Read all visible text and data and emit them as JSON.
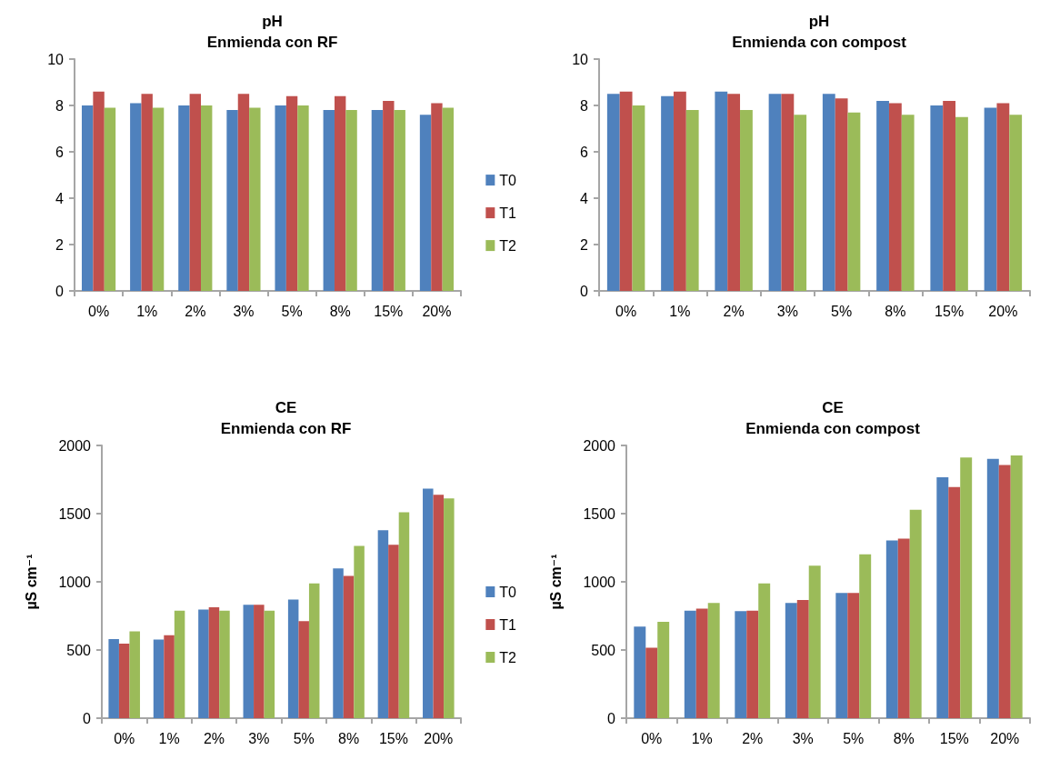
{
  "chart_data": [
    {
      "type": "bar",
      "title": "pH",
      "subtitle": "Enmienda con RF",
      "categories": [
        "0%",
        "1%",
        "2%",
        "3%",
        "5%",
        "8%",
        "15%",
        "20%"
      ],
      "series": [
        {
          "name": "T0",
          "color": "#4f81bd",
          "values": [
            8.0,
            8.1,
            8.0,
            7.8,
            8.0,
            7.8,
            7.8,
            7.6
          ]
        },
        {
          "name": "T1",
          "color": "#c0504d",
          "values": [
            8.6,
            8.5,
            8.5,
            8.5,
            8.4,
            8.4,
            8.2,
            8.1
          ]
        },
        {
          "name": "T2",
          "color": "#9bbb59",
          "values": [
            7.9,
            7.9,
            8.0,
            7.9,
            8.0,
            7.8,
            7.8,
            7.9
          ]
        }
      ],
      "ylim": [
        0,
        10
      ],
      "yticks": [
        0,
        2,
        4,
        6,
        8,
        10
      ],
      "grid": false,
      "legend": "right"
    },
    {
      "type": "bar",
      "title": "pH",
      "subtitle": "Enmienda con compost",
      "categories": [
        "0%",
        "1%",
        "2%",
        "3%",
        "5%",
        "8%",
        "15%",
        "20%"
      ],
      "series": [
        {
          "color": "#4f81bd",
          "values": [
            8.5,
            8.4,
            8.6,
            8.5,
            8.5,
            8.2,
            8.0,
            7.9
          ]
        },
        {
          "color": "#c0504d",
          "values": [
            8.6,
            8.6,
            8.5,
            8.5,
            8.3,
            8.1,
            8.2,
            8.1
          ]
        },
        {
          "color": "#9bbb59",
          "values": [
            8.0,
            7.8,
            7.8,
            7.6,
            7.7,
            7.6,
            7.5,
            7.6
          ]
        }
      ],
      "ylim": [
        0,
        10
      ],
      "yticks": [
        0,
        2,
        4,
        6,
        8,
        10
      ],
      "grid": false,
      "legend": false
    },
    {
      "type": "bar",
      "title": "CE",
      "subtitle": "Enmienda con RF",
      "ylabel": "µS cm⁻¹",
      "categories": [
        "0%",
        "1%",
        "2%",
        "3%",
        "5%",
        "8%",
        "15%",
        "20%"
      ],
      "series": [
        {
          "name": "T0",
          "color": "#4f81bd",
          "values": [
            580,
            576,
            797,
            832,
            870,
            1099,
            1378,
            1684
          ]
        },
        {
          "name": "T1",
          "color": "#c0504d",
          "values": [
            547,
            609,
            814,
            832,
            711,
            1044,
            1271,
            1639
          ]
        },
        {
          "name": "T2",
          "color": "#9bbb59",
          "values": [
            636,
            788,
            788,
            788,
            988,
            1264,
            1510,
            1612
          ]
        }
      ],
      "ylim": [
        0,
        2000
      ],
      "yticks": [
        0,
        500,
        1000,
        1500,
        2000
      ],
      "grid": false,
      "legend": "right"
    },
    {
      "type": "bar",
      "title": "CE",
      "subtitle": "Enmienda con compost",
      "ylabel": "µS cm⁻¹",
      "categories": [
        "0%",
        "1%",
        "2%",
        "3%",
        "5%",
        "8%",
        "15%",
        "20%"
      ],
      "series": [
        {
          "color": "#4f81bd",
          "values": [
            671,
            789,
            785,
            845,
            919,
            1303,
            1766,
            1901
          ]
        },
        {
          "color": "#c0504d",
          "values": [
            516,
            803,
            789,
            866,
            919,
            1317,
            1695,
            1857
          ]
        },
        {
          "color": "#9bbb59",
          "values": [
            706,
            845,
            988,
            1118,
            1201,
            1528,
            1912,
            1926
          ]
        }
      ],
      "ylim": [
        0,
        2000
      ],
      "yticks": [
        0,
        500,
        1000,
        1500,
        2000
      ],
      "grid": false,
      "legend": false
    }
  ]
}
